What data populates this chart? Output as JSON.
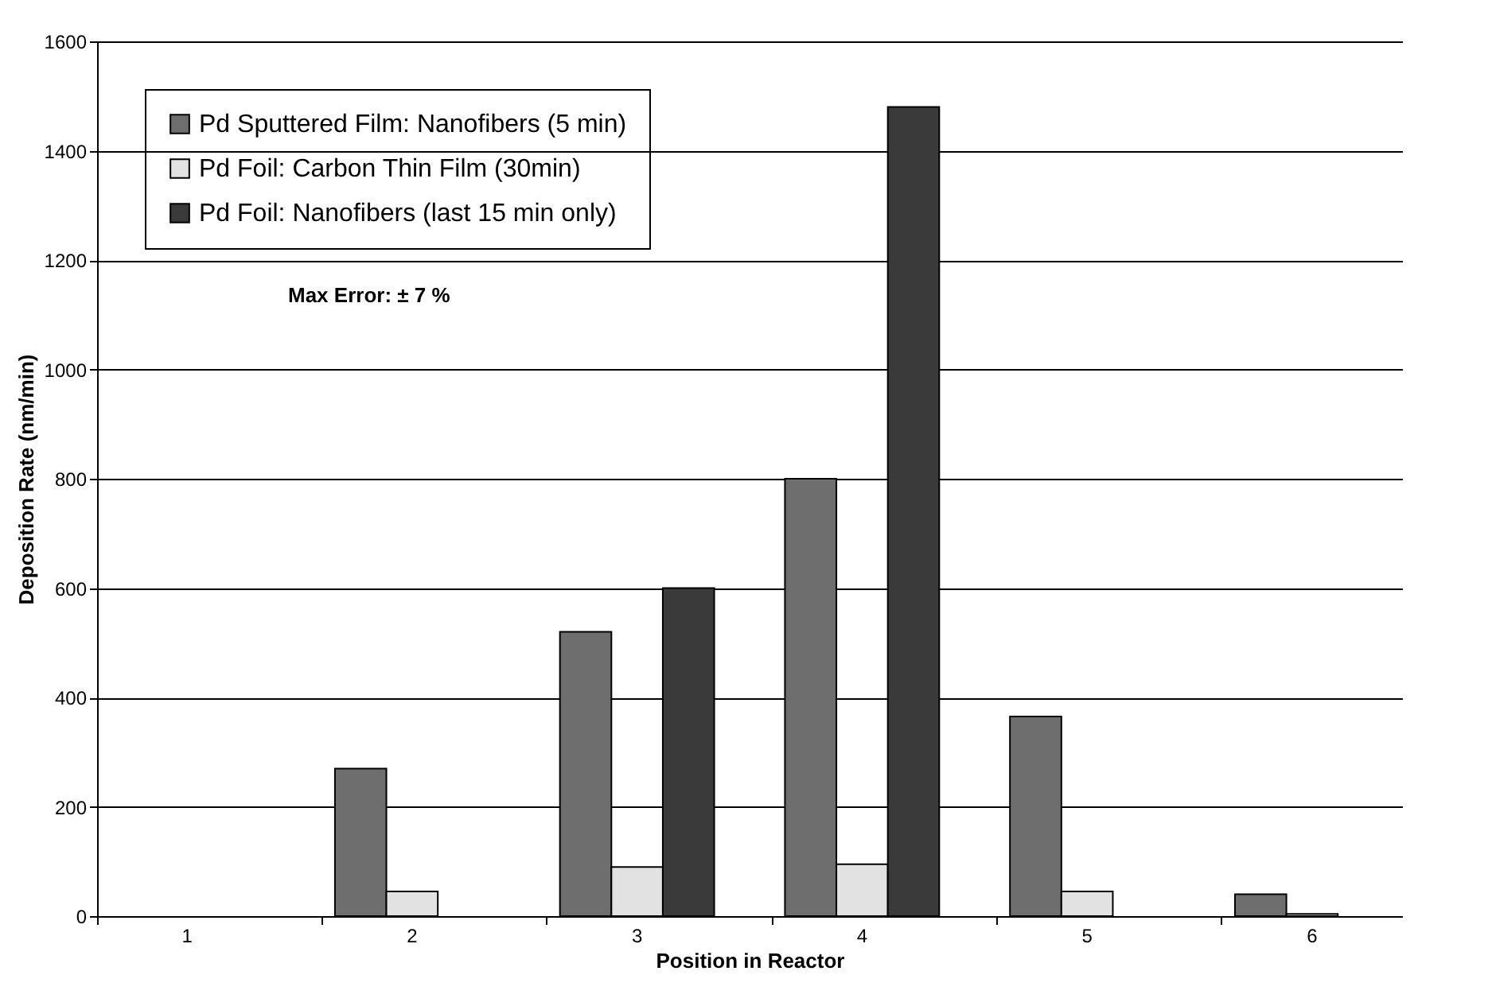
{
  "chart_data": {
    "type": "bar",
    "xlabel": "Position in Reactor",
    "ylabel": "Deposition Rate (nm/min)",
    "categories": [
      "1",
      "2",
      "3",
      "4",
      "5",
      "6"
    ],
    "series": [
      {
        "name": "Pd Sputtered Film: Nanofibers (5 min)",
        "color": "#6e6e6e",
        "values": [
          null,
          270,
          520,
          800,
          365,
          40
        ]
      },
      {
        "name": "Pd Foil: Carbon Thin Film (30min)",
        "color": "#e2e2e2",
        "values": [
          null,
          45,
          90,
          95,
          45,
          4
        ]
      },
      {
        "name": "Pd Foil: Nanofibers (last 15 min only)",
        "color": "#3a3a3a",
        "values": [
          null,
          null,
          600,
          1480,
          null,
          null
        ]
      }
    ],
    "ylim": [
      0,
      1600
    ],
    "yticks": [
      0,
      200,
      400,
      600,
      800,
      1000,
      1200,
      1400,
      1600
    ],
    "grid": "y",
    "legend": "top left",
    "annotations": [
      "Max Error: ± 7 %"
    ]
  }
}
